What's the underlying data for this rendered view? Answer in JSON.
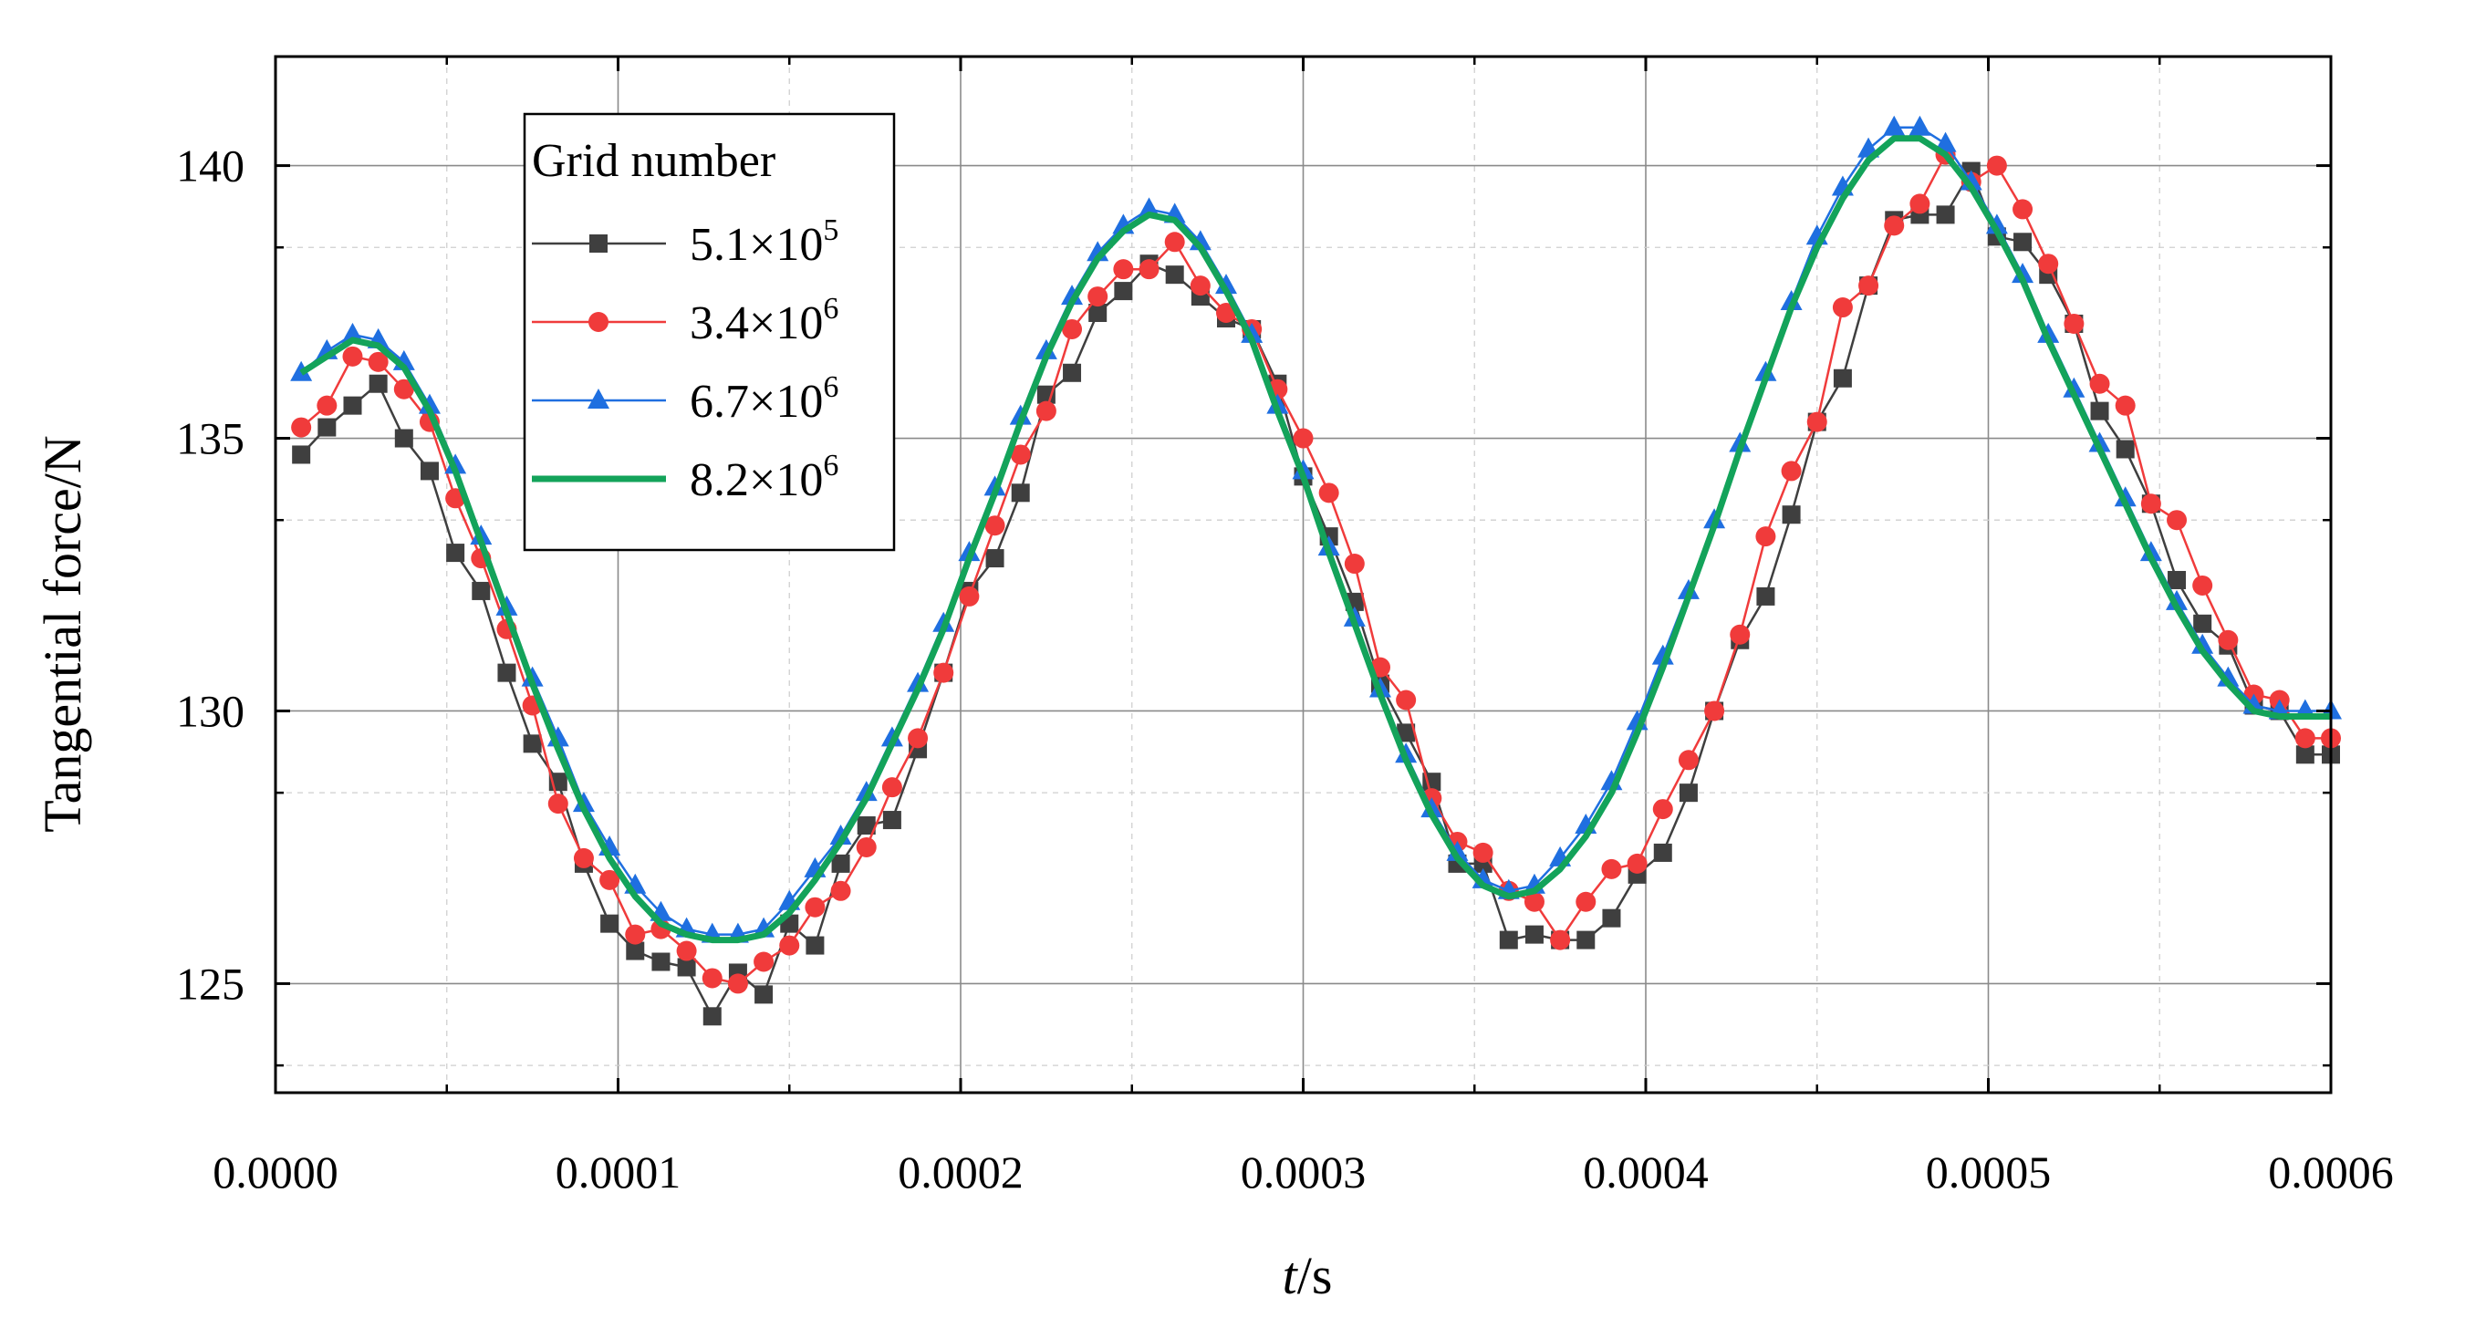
{
  "chart_data": {
    "type": "line",
    "xlabel_italic": "t",
    "xlabel_unit": "/s",
    "ylabel": "Tangential force/N",
    "xlim": [
      0,
      0.0006
    ],
    "ylim": [
      123,
      142
    ],
    "x_ticks": [
      "0.0000",
      "0.0001",
      "0.0002",
      "0.0003",
      "0.0004",
      "0.0005",
      "0.0006"
    ],
    "x_tick_values": [
      0,
      0.0001,
      0.0002,
      0.0003,
      0.0004,
      0.0005,
      0.0006
    ],
    "y_ticks": [
      "125",
      "130",
      "135",
      "140"
    ],
    "y_tick_values": [
      125,
      130,
      135,
      140
    ],
    "grid": true,
    "legend": {
      "title": "Grid number",
      "placement": "top-left",
      "entries": [
        {
          "mantissa": "5.1×10",
          "exp": "5"
        },
        {
          "mantissa": "3.4×10",
          "exp": "6"
        },
        {
          "mantissa": "6.7×10",
          "exp": "6"
        },
        {
          "mantissa": "8.2×10",
          "exp": "6"
        }
      ]
    },
    "series": [
      {
        "name": "5.1×10^5",
        "color": "#3f3f3f",
        "marker": "square",
        "x": [
          7.5e-06,
          1.5e-05,
          2.25e-05,
          3e-05,
          3.75e-05,
          4.5e-05,
          5.25e-05,
          6e-05,
          6.75e-05,
          7.5e-05,
          8.25e-05,
          9e-05,
          9.75e-05,
          0.000105,
          0.0001125,
          0.00012,
          0.0001275,
          0.000135,
          0.0001425,
          0.00015,
          0.0001575,
          0.000165,
          0.0001725,
          0.00018,
          0.0001875,
          0.000195,
          0.0002025,
          0.00021,
          0.0002175,
          0.000225,
          0.0002325,
          0.00024,
          0.0002475,
          0.000255,
          0.0002625,
          0.00027,
          0.0002775,
          0.000285,
          0.0002925,
          0.0003,
          0.0003075,
          0.000315,
          0.0003225,
          0.00033,
          0.0003375,
          0.000345,
          0.0003525,
          0.00036,
          0.0003675,
          0.000375,
          0.0003825,
          0.00039,
          0.0003975,
          0.000405,
          0.0004125,
          0.00042,
          0.0004275,
          0.000435,
          0.0004425,
          0.00045,
          0.0004575,
          0.000465,
          0.0004725,
          0.00048,
          0.0004875,
          0.000495,
          0.0005025,
          0.00051,
          0.0005175,
          0.000525,
          0.0005325,
          0.00054,
          0.0005475,
          0.000555,
          0.0005625,
          0.00057,
          0.0005775,
          0.000585,
          0.0005925,
          0.0006
        ],
        "y": [
          134.7,
          135.2,
          135.6,
          136.0,
          135.0,
          134.4,
          132.9,
          132.2,
          130.7,
          129.4,
          128.7,
          127.2,
          126.1,
          125.6,
          125.4,
          125.3,
          124.4,
          125.2,
          124.8,
          126.1,
          125.7,
          127.2,
          127.9,
          128.0,
          129.3,
          130.7,
          132.2,
          132.8,
          134.0,
          135.8,
          136.2,
          137.3,
          137.7,
          138.2,
          138.0,
          137.6,
          137.2,
          137.0,
          136.0,
          134.3,
          133.2,
          132.0,
          130.5,
          129.6,
          128.7,
          127.2,
          127.2,
          125.8,
          125.9,
          125.8,
          125.8,
          126.2,
          127.0,
          127.4,
          128.5,
          130.0,
          131.3,
          132.1,
          133.6,
          135.3,
          136.1,
          137.8,
          139.0,
          139.1,
          139.1,
          139.9,
          138.7,
          138.6,
          138.0,
          137.1,
          135.5,
          134.8,
          133.8,
          132.4,
          131.6,
          131.2,
          130.1,
          130.0,
          129.2,
          129.2
        ]
      },
      {
        "name": "3.4×10^6",
        "color": "#f03b3b",
        "marker": "circle",
        "x": [
          7.5e-06,
          1.5e-05,
          2.25e-05,
          3e-05,
          3.75e-05,
          4.5e-05,
          5.25e-05,
          6e-05,
          6.75e-05,
          7.5e-05,
          8.25e-05,
          9e-05,
          9.75e-05,
          0.000105,
          0.0001125,
          0.00012,
          0.0001275,
          0.000135,
          0.0001425,
          0.00015,
          0.0001575,
          0.000165,
          0.0001725,
          0.00018,
          0.0001875,
          0.000195,
          0.0002025,
          0.00021,
          0.0002175,
          0.000225,
          0.0002325,
          0.00024,
          0.0002475,
          0.000255,
          0.0002625,
          0.00027,
          0.0002775,
          0.000285,
          0.0002925,
          0.0003,
          0.0003075,
          0.000315,
          0.0003225,
          0.00033,
          0.0003375,
          0.000345,
          0.0003525,
          0.00036,
          0.0003675,
          0.000375,
          0.0003825,
          0.00039,
          0.0003975,
          0.000405,
          0.0004125,
          0.00042,
          0.0004275,
          0.000435,
          0.0004425,
          0.00045,
          0.0004575,
          0.000465,
          0.0004725,
          0.00048,
          0.0004875,
          0.000495,
          0.0005025,
          0.00051,
          0.0005175,
          0.000525,
          0.0005325,
          0.00054,
          0.0005475,
          0.000555,
          0.0005625,
          0.00057,
          0.0005775,
          0.000585,
          0.0005925,
          0.0006
        ],
        "y": [
          135.2,
          135.6,
          136.5,
          136.4,
          135.9,
          135.3,
          133.9,
          132.8,
          131.5,
          130.1,
          128.3,
          127.3,
          126.9,
          125.9,
          126.0,
          125.6,
          125.1,
          125.0,
          125.4,
          125.7,
          126.4,
          126.7,
          127.5,
          128.6,
          129.5,
          130.7,
          132.1,
          133.4,
          134.7,
          135.5,
          137.0,
          137.6,
          138.1,
          138.1,
          138.6,
          137.8,
          137.3,
          137.0,
          135.9,
          135.0,
          134.0,
          132.7,
          130.8,
          130.2,
          128.4,
          127.6,
          127.4,
          126.7,
          126.5,
          125.8,
          126.5,
          127.1,
          127.2,
          128.2,
          129.1,
          130.0,
          131.4,
          133.2,
          134.4,
          135.3,
          137.4,
          137.8,
          138.9,
          139.3,
          140.2,
          139.7,
          140.0,
          139.2,
          138.2,
          137.1,
          136.0,
          135.6,
          133.8,
          133.5,
          132.3,
          131.3,
          130.3,
          130.2,
          129.5,
          129.5
        ]
      },
      {
        "name": "6.7×10^6",
        "color": "#1f6fe0",
        "marker": "triangle",
        "x": [
          7.5e-06,
          1.5e-05,
          2.25e-05,
          3e-05,
          3.75e-05,
          4.5e-05,
          5.25e-05,
          6e-05,
          6.75e-05,
          7.5e-05,
          8.25e-05,
          9e-05,
          9.75e-05,
          0.000105,
          0.0001125,
          0.00012,
          0.0001275,
          0.000135,
          0.0001425,
          0.00015,
          0.0001575,
          0.000165,
          0.0001725,
          0.00018,
          0.0001875,
          0.000195,
          0.0002025,
          0.00021,
          0.0002175,
          0.000225,
          0.0002325,
          0.00024,
          0.0002475,
          0.000255,
          0.0002625,
          0.00027,
          0.0002775,
          0.000285,
          0.0002925,
          0.0003,
          0.0003075,
          0.000315,
          0.0003225,
          0.00033,
          0.0003375,
          0.000345,
          0.0003525,
          0.00036,
          0.0003675,
          0.000375,
          0.0003825,
          0.00039,
          0.0003975,
          0.000405,
          0.0004125,
          0.00042,
          0.0004275,
          0.000435,
          0.0004425,
          0.00045,
          0.0004575,
          0.000465,
          0.0004725,
          0.00048,
          0.0004875,
          0.000495,
          0.0005025,
          0.00051,
          0.0005175,
          0.000525,
          0.0005325,
          0.00054,
          0.0005475,
          0.000555,
          0.0005625,
          0.00057,
          0.0005775,
          0.000585,
          0.0005925,
          0.0006
        ],
        "y": [
          136.2,
          136.6,
          136.9,
          136.8,
          136.4,
          135.6,
          134.5,
          133.2,
          131.9,
          130.6,
          129.5,
          128.3,
          127.5,
          126.8,
          126.3,
          126.0,
          125.9,
          125.9,
          126.0,
          126.5,
          127.1,
          127.7,
          128.5,
          129.5,
          130.5,
          131.6,
          132.9,
          134.1,
          135.4,
          136.6,
          137.6,
          138.4,
          138.9,
          139.2,
          139.1,
          138.6,
          137.8,
          136.9,
          135.6,
          134.4,
          133.0,
          131.7,
          130.4,
          129.2,
          128.2,
          127.4,
          126.9,
          126.7,
          126.8,
          127.3,
          127.9,
          128.7,
          129.8,
          131.0,
          132.2,
          133.5,
          134.9,
          136.2,
          137.5,
          138.7,
          139.6,
          140.3,
          140.7,
          140.7,
          140.4,
          139.7,
          138.9,
          138.0,
          136.9,
          135.9,
          134.9,
          133.9,
          132.9,
          132.0,
          131.2,
          130.6,
          130.1,
          130.0,
          130.0,
          130.0
        ]
      },
      {
        "name": "8.2×10^6",
        "color": "#13a35a",
        "marker": "none",
        "x": [
          7.5e-06,
          1.5e-05,
          2.25e-05,
          3e-05,
          3.75e-05,
          4.5e-05,
          5.25e-05,
          6e-05,
          6.75e-05,
          7.5e-05,
          8.25e-05,
          9e-05,
          9.75e-05,
          0.000105,
          0.0001125,
          0.00012,
          0.0001275,
          0.000135,
          0.0001425,
          0.00015,
          0.0001575,
          0.000165,
          0.0001725,
          0.00018,
          0.0001875,
          0.000195,
          0.0002025,
          0.00021,
          0.0002175,
          0.000225,
          0.0002325,
          0.00024,
          0.0002475,
          0.000255,
          0.0002625,
          0.00027,
          0.0002775,
          0.000285,
          0.0002925,
          0.0003,
          0.0003075,
          0.000315,
          0.0003225,
          0.00033,
          0.0003375,
          0.000345,
          0.0003525,
          0.00036,
          0.0003675,
          0.000375,
          0.0003825,
          0.00039,
          0.0003975,
          0.000405,
          0.0004125,
          0.00042,
          0.0004275,
          0.000435,
          0.0004425,
          0.00045,
          0.0004575,
          0.000465,
          0.0004725,
          0.00048,
          0.0004875,
          0.000495,
          0.0005025,
          0.00051,
          0.0005175,
          0.000525,
          0.0005325,
          0.00054,
          0.0005475,
          0.000555,
          0.0005625,
          0.00057,
          0.0005775,
          0.000585,
          0.0005925,
          0.0006
        ],
        "y": [
          136.2,
          136.5,
          136.8,
          136.7,
          136.3,
          135.5,
          134.4,
          133.1,
          131.8,
          130.5,
          129.3,
          128.2,
          127.3,
          126.6,
          126.1,
          125.9,
          125.8,
          125.8,
          125.9,
          126.3,
          126.9,
          127.6,
          128.4,
          129.4,
          130.4,
          131.5,
          132.8,
          134.0,
          135.3,
          136.5,
          137.5,
          138.3,
          138.8,
          139.1,
          139.0,
          138.5,
          137.7,
          136.8,
          135.5,
          134.3,
          132.9,
          131.6,
          130.3,
          129.1,
          128.1,
          127.3,
          126.8,
          126.6,
          126.7,
          127.1,
          127.7,
          128.5,
          129.6,
          130.8,
          132.1,
          133.4,
          134.8,
          136.1,
          137.4,
          138.5,
          139.4,
          140.1,
          140.5,
          140.5,
          140.2,
          139.6,
          138.8,
          137.9,
          136.8,
          135.8,
          134.8,
          133.8,
          132.8,
          131.9,
          131.1,
          130.5,
          130.0,
          129.9,
          129.9,
          129.9
        ]
      }
    ]
  }
}
